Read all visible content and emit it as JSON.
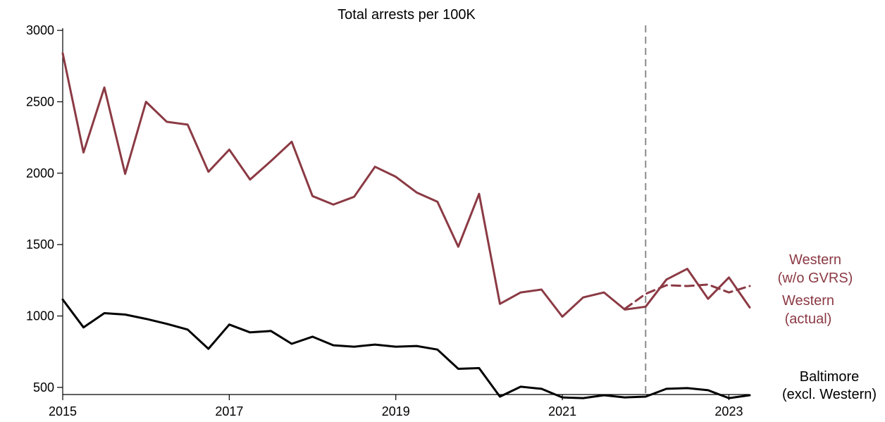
{
  "chart_data": {
    "type": "line",
    "title": "Total arrests per 100K",
    "xlabel": "",
    "ylabel": "",
    "xlim": [
      2015,
      2023.25
    ],
    "ylim": [
      450,
      3050
    ],
    "x_ticks": [
      {
        "value": 2015,
        "label": "2015"
      },
      {
        "value": 2017,
        "label": "2017"
      },
      {
        "value": 2019,
        "label": "2019"
      },
      {
        "value": 2021,
        "label": "2021"
      },
      {
        "value": 2023,
        "label": "2023"
      }
    ],
    "y_ticks": [
      {
        "value": 500,
        "label": "500"
      },
      {
        "value": 1000,
        "label": "1000"
      },
      {
        "value": 1500,
        "label": "1500"
      },
      {
        "value": 2000,
        "label": "2000"
      },
      {
        "value": 2500,
        "label": "2500"
      },
      {
        "value": 3000,
        "label": "3000"
      }
    ],
    "intervention_x": 2022,
    "series": [
      {
        "name": "Western (actual)",
        "label_lines": [
          "Western",
          "(actual)"
        ],
        "color": "#8b3a44",
        "dash": "solid",
        "x": [
          2015.0,
          2015.25,
          2015.5,
          2015.75,
          2016.0,
          2016.25,
          2016.5,
          2016.75,
          2017.0,
          2017.25,
          2017.5,
          2017.75,
          2018.0,
          2018.25,
          2018.5,
          2018.75,
          2019.0,
          2019.25,
          2019.5,
          2019.75,
          2020.0,
          2020.25,
          2020.5,
          2020.75,
          2021.0,
          2021.25,
          2021.5,
          2021.75,
          2022.0,
          2022.25,
          2022.5,
          2022.75,
          2023.0,
          2023.25
        ],
        "y": [
          2840,
          2145,
          2600,
          1995,
          2500,
          2360,
          2340,
          2010,
          2165,
          1955,
          2085,
          2220,
          1840,
          1780,
          1835,
          2045,
          1975,
          1865,
          1800,
          1485,
          1855,
          1085,
          1165,
          1185,
          995,
          1130,
          1165,
          1045,
          1065,
          1255,
          1330,
          1120,
          1270,
          1060
        ]
      },
      {
        "name": "Western (w/o GVRS)",
        "label_lines": [
          "Western",
          "(w/o GVRS)"
        ],
        "color": "#8b3a44",
        "dash": "dashed",
        "x": [
          2021.75,
          2022.0,
          2022.25,
          2022.5,
          2022.75,
          2023.0,
          2023.25
        ],
        "y": [
          1050,
          1155,
          1215,
          1210,
          1220,
          1165,
          1210
        ]
      },
      {
        "name": "Baltimore (excl. Western)",
        "label_lines": [
          "Baltimore",
          "(excl. Western)"
        ],
        "color": "#000000",
        "dash": "solid",
        "x": [
          2015.0,
          2015.25,
          2015.5,
          2015.75,
          2016.0,
          2016.25,
          2016.5,
          2016.75,
          2017.0,
          2017.25,
          2017.5,
          2017.75,
          2018.0,
          2018.25,
          2018.5,
          2018.75,
          2019.0,
          2019.25,
          2019.5,
          2019.75,
          2020.0,
          2020.25,
          2020.5,
          2020.75,
          2021.0,
          2021.25,
          2021.5,
          2021.75,
          2022.0,
          2022.25,
          2022.5,
          2022.75,
          2023.0,
          2023.25
        ],
        "y": [
          1115,
          920,
          1020,
          1010,
          980,
          945,
          905,
          770,
          940,
          885,
          895,
          805,
          855,
          795,
          785,
          800,
          785,
          790,
          765,
          630,
          635,
          435,
          505,
          490,
          430,
          425,
          445,
          430,
          435,
          490,
          495,
          480,
          425,
          445
        ]
      }
    ]
  }
}
